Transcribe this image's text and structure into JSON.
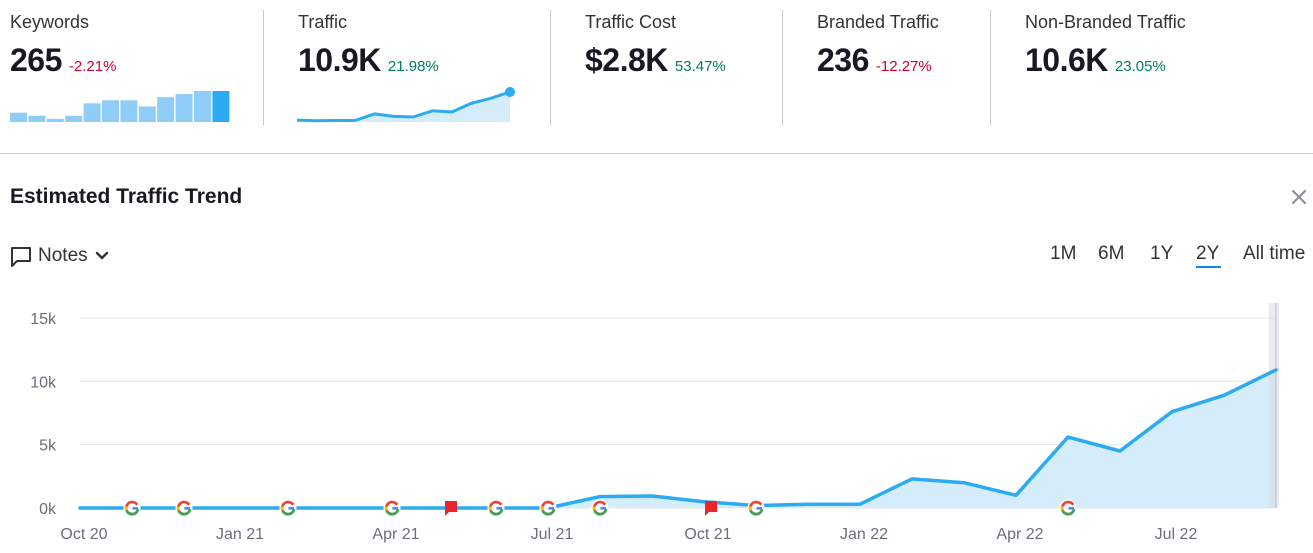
{
  "metrics": [
    {
      "label": "Keywords",
      "value": "265",
      "change": "-2.21%",
      "trend": "neg"
    },
    {
      "label": "Traffic",
      "value": "10.9K",
      "change": "21.98%",
      "trend": "pos"
    },
    {
      "label": "Traffic Cost",
      "value": "$2.8K",
      "change": "53.47%",
      "trend": "pos"
    },
    {
      "label": "Branded Traffic",
      "value": "236",
      "change": "-12.27%",
      "trend": "neg"
    },
    {
      "label": "Non-Branded Traffic",
      "value": "10.6K",
      "change": "23.05%",
      "trend": "pos"
    }
  ],
  "keywords_sparkline": [
    3,
    2,
    1,
    2,
    6,
    7,
    7,
    5,
    8,
    9,
    10,
    10
  ],
  "traffic_sparkline": [
    0.15,
    0.1,
    0.12,
    0.13,
    0.65,
    0.45,
    0.4,
    0.9,
    0.8,
    1.5,
    1.9,
    2.4
  ],
  "panel": {
    "title": "Estimated Traffic Trend",
    "notes_label": "Notes",
    "ranges": [
      "1M",
      "6M",
      "1Y",
      "2Y",
      "All time"
    ],
    "active_range": "2Y"
  },
  "colors": {
    "accent": "#2aabf3",
    "area": "#d5ecfa",
    "bar_light": "#8fccf8",
    "bar_dark": "#2aabf3",
    "negative": "#d1002f",
    "positive": "#007c65",
    "note_flag": "#e8262b"
  },
  "chart_data": {
    "type": "area",
    "title": "Estimated Traffic Trend",
    "ylim": [
      0,
      15000
    ],
    "yticks": [
      0,
      5000,
      10000,
      15000
    ],
    "ytick_labels": [
      "0k",
      "5k",
      "10k",
      "15k"
    ],
    "xtick_labels": [
      "Oct 20",
      "Jan 21",
      "Apr 21",
      "Jul 21",
      "Oct 21",
      "Jan 22",
      "Apr 22",
      "Jul 22"
    ],
    "xtick_indices": [
      0,
      3,
      6,
      9,
      12,
      15,
      18,
      21
    ],
    "series": [
      {
        "name": "Traffic",
        "values": [
          0,
          0,
          0,
          0,
          0,
          0,
          0,
          0,
          0,
          0,
          900,
          950,
          500,
          200,
          300,
          300,
          2300,
          2000,
          1000,
          5600,
          4500,
          7600,
          8900,
          10900
        ]
      }
    ],
    "google_updates": [
      1,
      2,
      4,
      6,
      8,
      9,
      10,
      13,
      19
    ],
    "notes_flags": [
      7,
      12
    ]
  }
}
